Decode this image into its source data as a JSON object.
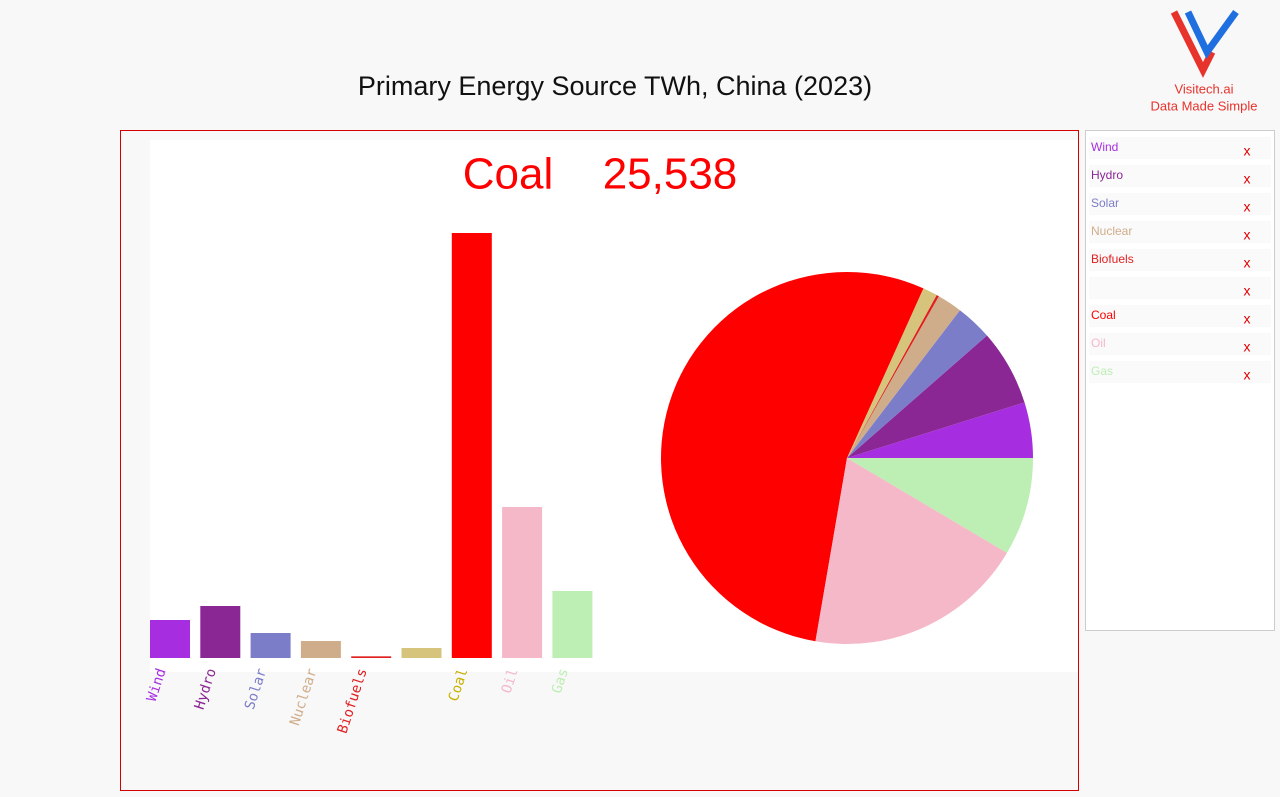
{
  "header": {
    "brand": "Visitech.ai",
    "tagline": "Data Made Simple"
  },
  "chart_data": {
    "type": "bar-pie",
    "title": "Primary Energy Source TWh, China (2023)",
    "highlight": {
      "category": "Coal",
      "value_label": "25,538"
    },
    "categories": [
      "Wind",
      "Hydro",
      "Solar",
      "Nuclear",
      "Biofuels",
      null,
      "Coal",
      "Oil",
      "Gas"
    ],
    "values": [
      2283,
      3125,
      1502,
      1022,
      100,
      601,
      25538,
      9074,
      4026
    ],
    "colors": [
      "#a72ee0",
      "#8b2795",
      "#7b7dc8",
      "#d0ad8a",
      "#e02020",
      "#d6c47c",
      "#ff0000",
      "#f5b8c8",
      "#bdeeb4"
    ],
    "label_colors": [
      "#a72ee0",
      "#8b2795",
      "#7b7dc8",
      "#d0ad8a",
      "#e02020",
      null,
      "#c8b000",
      "#f5b8c8",
      "#bdeeb4"
    ],
    "legend_remove": "x"
  }
}
